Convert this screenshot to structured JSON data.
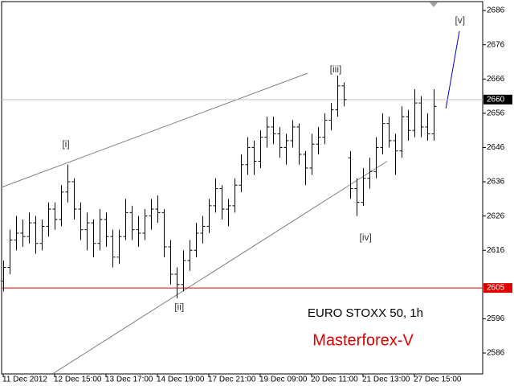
{
  "chart_data": {
    "type": "ohlc",
    "title": "EURO STOXX 50, 1h",
    "subtitle": "Masterforex-V",
    "open": [
      2607,
      2611,
      2619,
      2621,
      2620,
      2624,
      2618,
      2623,
      2628,
      2625,
      2633,
      2636,
      2628,
      2622,
      2624,
      2618,
      2625,
      2620,
      2614,
      2620,
      2627,
      2622,
      2621,
      2626,
      2628,
      2627,
      2617,
      2609,
      2606,
      2613,
      2616,
      2621,
      2623,
      2629,
      2634,
      2628,
      2629,
      2635,
      2641,
      2646,
      2642,
      2649,
      2652,
      2650,
      2646,
      2648,
      2652,
      2644,
      2640,
      2647,
      2649,
      2654,
      2657,
      2664,
      2643,
      2634,
      2630,
      2637,
      2639,
      2646,
      2653,
      2648,
      2645,
      2655,
      2651,
      2659,
      2652,
      2650
    ],
    "high": [
      2613,
      2622,
      2626,
      2625,
      2627,
      2626,
      2625,
      2630,
      2630,
      2635,
      2641,
      2637,
      2630,
      2627,
      2625,
      2628,
      2627,
      2622,
      2622,
      2631,
      2629,
      2626,
      2628,
      2631,
      2632,
      2628,
      2619,
      2611,
      2616,
      2619,
      2624,
      2626,
      2631,
      2637,
      2635,
      2631,
      2637,
      2644,
      2649,
      2648,
      2651,
      2655,
      2655,
      2652,
      2650,
      2654,
      2653,
      2645,
      2650,
      2652,
      2656,
      2659,
      2667,
      2665,
      2645,
      2637,
      2640,
      2643,
      2649,
      2656,
      2655,
      2650,
      2658,
      2657,
      2663,
      2661,
      2656,
      2663
    ],
    "low": [
      2604,
      2609,
      2616,
      2617,
      2618,
      2615,
      2616,
      2620,
      2622,
      2623,
      2630,
      2625,
      2619,
      2616,
      2614,
      2616,
      2617,
      2611,
      2612,
      2619,
      2619,
      2617,
      2619,
      2622,
      2624,
      2614,
      2606,
      2602,
      2604,
      2610,
      2614,
      2618,
      2621,
      2627,
      2625,
      2623,
      2627,
      2633,
      2638,
      2638,
      2640,
      2646,
      2647,
      2643,
      2641,
      2646,
      2641,
      2635,
      2638,
      2644,
      2647,
      2651,
      2655,
      2658,
      2631,
      2626,
      2629,
      2634,
      2637,
      2644,
      2646,
      2638,
      2643,
      2648,
      2649,
      2649,
      2648,
      2648
    ],
    "close": [
      2611,
      2619,
      2621,
      2620,
      2624,
      2618,
      2623,
      2628,
      2625,
      2633,
      2636,
      2628,
      2622,
      2624,
      2618,
      2625,
      2620,
      2614,
      2620,
      2627,
      2622,
      2621,
      2626,
      2628,
      2627,
      2617,
      2609,
      2606,
      2613,
      2616,
      2621,
      2623,
      2629,
      2634,
      2628,
      2629,
      2635,
      2641,
      2646,
      2642,
      2649,
      2652,
      2650,
      2646,
      2648,
      2652,
      2644,
      2640,
      2647,
      2649,
      2654,
      2657,
      2664,
      2660,
      2634,
      2630,
      2637,
      2639,
      2646,
      2653,
      2648,
      2645,
      2655,
      2651,
      2659,
      2652,
      2650,
      2658
    ],
    "color": "#000000",
    "xlim": [
      -0.25,
      74.625
    ],
    "ylim": [
      2579.9,
      2688.6
    ],
    "xticks": [
      {
        "value": 0,
        "label": "11 Dec 2012"
      },
      {
        "value": 8,
        "label": "12 Dec 15:00"
      },
      {
        "value": 16,
        "label": "13 Dec 17:00"
      },
      {
        "value": 24,
        "label": "14 Dec 19:00"
      },
      {
        "value": 32,
        "label": "17 Dec 21:00"
      },
      {
        "value": 40,
        "label": "19 Dec 09:00"
      },
      {
        "value": 48,
        "label": "20 Dec 11:00"
      },
      {
        "value": 56,
        "label": "21 Dec 13:00"
      },
      {
        "value": 64,
        "label": "27 Dec 15:00"
      }
    ],
    "yticks": [
      2686,
      2676,
      2666,
      2656,
      2646,
      2636,
      2626,
      2616,
      2596,
      2586
    ],
    "hlines": [
      {
        "value": 2660,
        "color": "#c0c0c0",
        "label_color": "#000000"
      },
      {
        "value": 2605,
        "color": "#e00000",
        "label_color": "#e00000"
      }
    ],
    "trendlines": [
      {
        "x": [
          -0.25,
          47.4
        ],
        "y": [
          2634.4,
          2667.7
        ],
        "color": "#808080"
      },
      {
        "x": [
          7.75,
          59.75
        ],
        "y": [
          2580,
          2642
        ],
        "color": "#808080"
      },
      {
        "x": [
          68.9,
          71
        ],
        "y": [
          2657.4,
          2680
        ],
        "color": "#0000c8"
      }
    ],
    "annotations": [
      {
        "text": "[i]",
        "x": 9.75,
        "y": 2646.8
      },
      {
        "text": "[ii]",
        "x": 27.4,
        "y": 2599.3
      },
      {
        "text": "[iii]",
        "x": 51.75,
        "y": 2668.7
      },
      {
        "text": "[iv]",
        "x": 56.4,
        "y": 2619.6
      },
      {
        "text": "[v]",
        "x": 71.1,
        "y": 2683
      }
    ]
  }
}
